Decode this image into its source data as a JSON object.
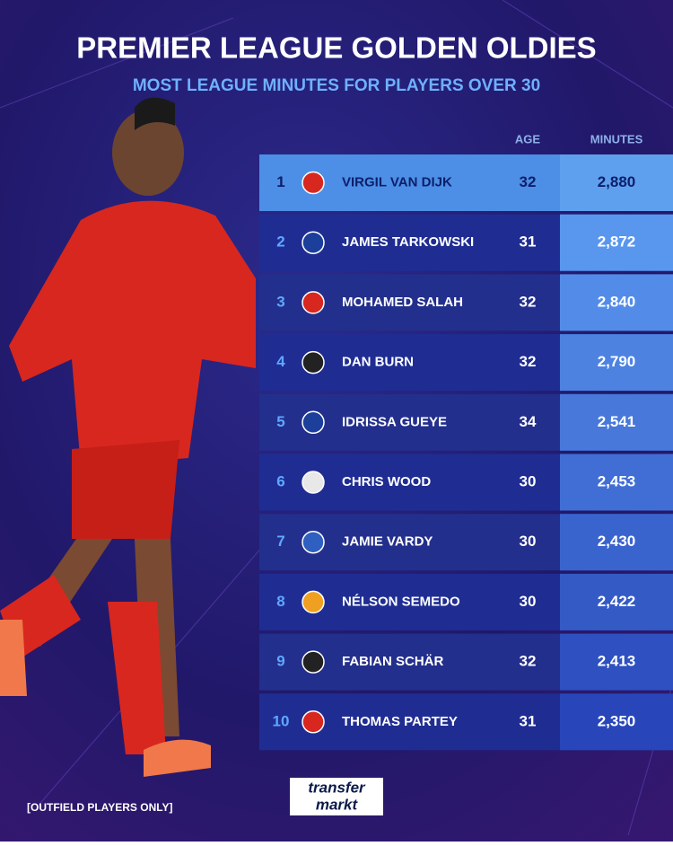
{
  "header": {
    "title": "PREMIER LEAGUE GOLDEN OLDIES",
    "subtitle": "MOST LEAGUE MINUTES FOR PLAYERS OVER 30"
  },
  "table": {
    "columns": [
      "AGE",
      "MINUTES"
    ],
    "rows": [
      [
        1,
        "VIRGIL VAN DIJK",
        32,
        "2,880"
      ],
      [
        2,
        "JAMES TARKOWSKI",
        31,
        "2,872"
      ],
      [
        3,
        "MOHAMED SALAH",
        32,
        "2,840"
      ],
      [
        4,
        "DAN BURN",
        32,
        "2,790"
      ],
      [
        5,
        "IDRISSA GUEYE",
        34,
        "2,541"
      ],
      [
        6,
        "CHRIS WOOD",
        30,
        "2,453"
      ],
      [
        7,
        "JAMIE VARDY",
        30,
        "2,430"
      ],
      [
        8,
        "NÉLSON SEMEDO",
        30,
        "2,422"
      ],
      [
        9,
        "FABIAN SCHÄR",
        32,
        "2,413"
      ],
      [
        10,
        "THOMAS PARTEY",
        31,
        "2,350"
      ]
    ]
  },
  "footer": {
    "note": "[OUTFIELD PLAYERS ONLY]",
    "logo_top": "transfer",
    "logo_bottom": "markt"
  }
}
